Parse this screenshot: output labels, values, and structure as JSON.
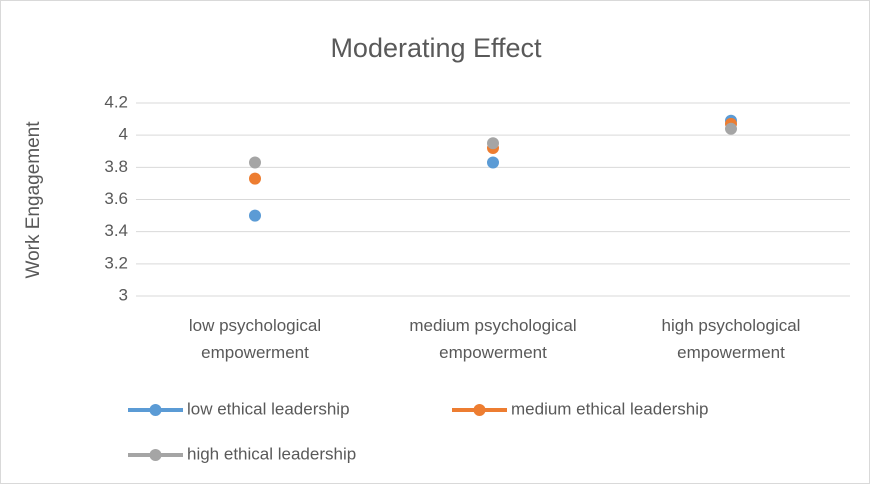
{
  "chart_data": {
    "type": "line",
    "title": "Moderating Effect",
    "y_label": "Work Engagement",
    "categories": [
      "low psychological empowerment",
      "medium psychological empowerment",
      "high psychological empowerment"
    ],
    "series": [
      {
        "name": "low ethical leadership",
        "color": "#5b9bd5",
        "values": [
          3.5,
          3.83,
          4.09
        ]
      },
      {
        "name": "medium ethical leadership",
        "color": "#ed7d31",
        "values": [
          3.73,
          3.92,
          4.07
        ]
      },
      {
        "name": "high ethical leadership",
        "color": "#a5a5a5",
        "values": [
          3.83,
          3.95,
          4.04
        ]
      }
    ],
    "ylim": [
      3,
      4.2
    ],
    "yticks": [
      3,
      3.2,
      3.4,
      3.6,
      3.8,
      4,
      4.2
    ],
    "grid": true,
    "legend": "bottom"
  }
}
